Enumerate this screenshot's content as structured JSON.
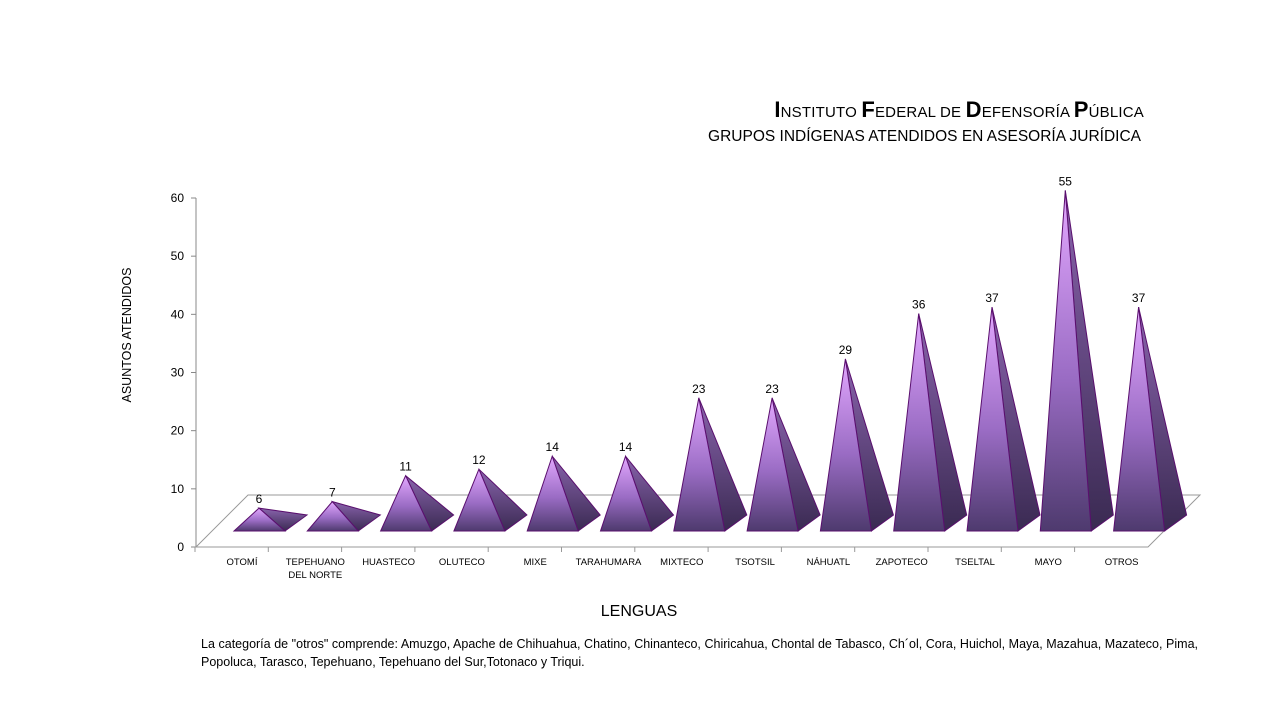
{
  "title": {
    "words": [
      {
        "cap": "I",
        "rest": "nstituto "
      },
      {
        "cap": "F",
        "rest": "ederal de "
      },
      {
        "cap": "D",
        "rest": "efensoría "
      },
      {
        "cap": "P",
        "rest": "ública"
      }
    ],
    "subtitle": "GRUPOS INDÍGENAS ATENDIDOS EN ASESORÍA JURÍDICA"
  },
  "note": "La categoría de \"otros\" comprende: Amuzgo, Apache de Chihuahua, Chatino,  Chinanteco, Chiricahua, Chontal de Tabasco, Ch´ol, Cora, Huichol, Maya, Mazahua, Mazateco, Pima, Popoluca, Tarasco, Tepehuano, Tepehuano del Sur,Totonaco y Triqui.",
  "colors": {
    "pyramid_light": "#e3a8ff",
    "pyramid_mid": "#9a6cc4",
    "pyramid_dark": "#4e3a6e",
    "pyramid_outline": "#5a0f6e"
  },
  "chart_data": {
    "type": "bar",
    "style": "3d-pyramid",
    "title": "Instituto Federal de Defensoría Pública",
    "subtitle": "GRUPOS INDÍGENAS ATENDIDOS EN ASESORÍA JURÍDICA",
    "xlabel": "LENGUAS",
    "ylabel": "ASUNTOS ATENDIDOS",
    "ylim": [
      0,
      60
    ],
    "yticks": [
      0,
      10,
      20,
      30,
      40,
      50,
      60
    ],
    "categories": [
      [
        "OTOMÍ"
      ],
      [
        "TEPEHUANO",
        "DEL NORTE"
      ],
      [
        "HUASTECO"
      ],
      [
        "OLUTECO"
      ],
      [
        "MIXE"
      ],
      [
        "TARAHUMARA"
      ],
      [
        "MIXTECO"
      ],
      [
        "TSOTSIL"
      ],
      [
        "NÁHUATL"
      ],
      [
        "ZAPOTECO"
      ],
      [
        "TSELTAL"
      ],
      [
        "MAYO"
      ],
      [
        "OTROS"
      ]
    ],
    "values": [
      6,
      7,
      11,
      12,
      14,
      14,
      23,
      23,
      29,
      36,
      37,
      55,
      37
    ],
    "grid": false,
    "legend": "none"
  }
}
